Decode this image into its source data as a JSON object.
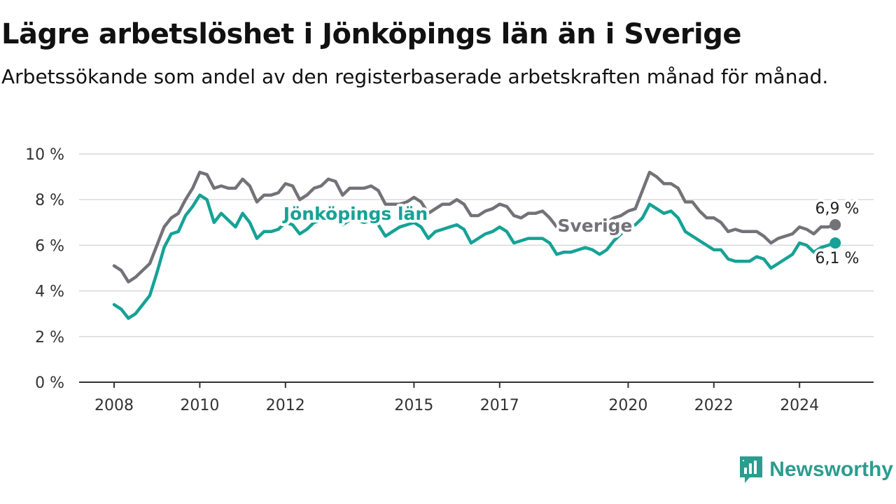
{
  "title": "Lägre arbetslöshet i Jönköpings län än i Sverige",
  "subtitle": "Arbetssökande som andel av den registerbaserade arbetskraften månad för månad.",
  "brand": {
    "name": "Newsworthy",
    "icon": "newsworthy-chart-icon"
  },
  "colors": {
    "sverige": "#737278",
    "jonkoping": "#16a296",
    "grid": "#d9d9d9",
    "axis": "#333333"
  },
  "chart_data": {
    "type": "line",
    "x_tick_labels": [
      "2008",
      "2010",
      "2012",
      "2015",
      "2017",
      "2020",
      "2022",
      "2024"
    ],
    "y_tick_labels": [
      "0 %",
      "2 %",
      "4 %",
      "6 %",
      "8 %",
      "10 %"
    ],
    "ylim": [
      0,
      10
    ],
    "grid": true,
    "legend": "inline labels",
    "series": [
      {
        "name": "Sverige",
        "color": "#737278",
        "end_label": "6,9 %",
        "points": [
          [
            "2008-01",
            5.1
          ],
          [
            "2008-03",
            4.9
          ],
          [
            "2008-05",
            4.4
          ],
          [
            "2008-07",
            4.6
          ],
          [
            "2008-09",
            4.9
          ],
          [
            "2008-11",
            5.2
          ],
          [
            "2009-01",
            6.0
          ],
          [
            "2009-03",
            6.8
          ],
          [
            "2009-05",
            7.2
          ],
          [
            "2009-07",
            7.4
          ],
          [
            "2009-09",
            8.0
          ],
          [
            "2009-11",
            8.5
          ],
          [
            "2010-01",
            9.2
          ],
          [
            "2010-03",
            9.1
          ],
          [
            "2010-05",
            8.5
          ],
          [
            "2010-07",
            8.6
          ],
          [
            "2010-09",
            8.5
          ],
          [
            "2010-11",
            8.5
          ],
          [
            "2011-01",
            8.9
          ],
          [
            "2011-03",
            8.6
          ],
          [
            "2011-05",
            7.9
          ],
          [
            "2011-07",
            8.2
          ],
          [
            "2011-09",
            8.2
          ],
          [
            "2011-11",
            8.3
          ],
          [
            "2012-01",
            8.7
          ],
          [
            "2012-03",
            8.6
          ],
          [
            "2012-05",
            8.0
          ],
          [
            "2012-07",
            8.2
          ],
          [
            "2012-09",
            8.5
          ],
          [
            "2012-11",
            8.6
          ],
          [
            "2013-01",
            8.9
          ],
          [
            "2013-03",
            8.8
          ],
          [
            "2013-05",
            8.2
          ],
          [
            "2013-07",
            8.5
          ],
          [
            "2013-09",
            8.5
          ],
          [
            "2013-11",
            8.5
          ],
          [
            "2014-01",
            8.6
          ],
          [
            "2014-03",
            8.4
          ],
          [
            "2014-05",
            7.8
          ],
          [
            "2014-07",
            7.8
          ],
          [
            "2014-09",
            7.8
          ],
          [
            "2014-11",
            7.9
          ],
          [
            "2015-01",
            8.1
          ],
          [
            "2015-03",
            7.9
          ],
          [
            "2015-05",
            7.4
          ],
          [
            "2015-07",
            7.6
          ],
          [
            "2015-09",
            7.8
          ],
          [
            "2015-11",
            7.8
          ],
          [
            "2016-01",
            8.0
          ],
          [
            "2016-03",
            7.8
          ],
          [
            "2016-05",
            7.3
          ],
          [
            "2016-07",
            7.3
          ],
          [
            "2016-09",
            7.5
          ],
          [
            "2016-11",
            7.6
          ],
          [
            "2017-01",
            7.8
          ],
          [
            "2017-03",
            7.7
          ],
          [
            "2017-05",
            7.3
          ],
          [
            "2017-07",
            7.2
          ],
          [
            "2017-09",
            7.4
          ],
          [
            "2017-11",
            7.4
          ],
          [
            "2018-01",
            7.5
          ],
          [
            "2018-03",
            7.2
          ],
          [
            "2018-05",
            6.8
          ],
          [
            "2018-07",
            6.8
          ],
          [
            "2018-09",
            6.8
          ],
          [
            "2018-11",
            6.8
          ],
          [
            "2019-01",
            7.0
          ],
          [
            "2019-03",
            6.9
          ],
          [
            "2019-05",
            6.8
          ],
          [
            "2019-07",
            7.0
          ],
          [
            "2019-09",
            7.2
          ],
          [
            "2019-11",
            7.3
          ],
          [
            "2020-01",
            7.5
          ],
          [
            "2020-03",
            7.6
          ],
          [
            "2020-05",
            8.4
          ],
          [
            "2020-07",
            9.2
          ],
          [
            "2020-09",
            9.0
          ],
          [
            "2020-11",
            8.7
          ],
          [
            "2021-01",
            8.7
          ],
          [
            "2021-03",
            8.5
          ],
          [
            "2021-05",
            7.9
          ],
          [
            "2021-07",
            7.9
          ],
          [
            "2021-09",
            7.5
          ],
          [
            "2021-11",
            7.2
          ],
          [
            "2022-01",
            7.2
          ],
          [
            "2022-03",
            7.0
          ],
          [
            "2022-05",
            6.6
          ],
          [
            "2022-07",
            6.7
          ],
          [
            "2022-09",
            6.6
          ],
          [
            "2022-11",
            6.6
          ],
          [
            "2023-01",
            6.6
          ],
          [
            "2023-03",
            6.4
          ],
          [
            "2023-05",
            6.1
          ],
          [
            "2023-07",
            6.3
          ],
          [
            "2023-09",
            6.4
          ],
          [
            "2023-11",
            6.5
          ],
          [
            "2024-01",
            6.8
          ],
          [
            "2024-03",
            6.7
          ],
          [
            "2024-05",
            6.5
          ],
          [
            "2024-07",
            6.8
          ],
          [
            "2024-09",
            6.8
          ],
          [
            "2024-11",
            6.9
          ]
        ]
      },
      {
        "name": "Jönköpings län",
        "color": "#16a296",
        "end_label": "6,1 %",
        "points": [
          [
            "2008-01",
            3.4
          ],
          [
            "2008-03",
            3.2
          ],
          [
            "2008-05",
            2.8
          ],
          [
            "2008-07",
            3.0
          ],
          [
            "2008-09",
            3.4
          ],
          [
            "2008-11",
            3.8
          ],
          [
            "2009-01",
            4.8
          ],
          [
            "2009-03",
            5.9
          ],
          [
            "2009-05",
            6.5
          ],
          [
            "2009-07",
            6.6
          ],
          [
            "2009-09",
            7.3
          ],
          [
            "2009-11",
            7.7
          ],
          [
            "2010-01",
            8.2
          ],
          [
            "2010-03",
            8.0
          ],
          [
            "2010-05",
            7.0
          ],
          [
            "2010-07",
            7.4
          ],
          [
            "2010-09",
            7.1
          ],
          [
            "2010-11",
            6.8
          ],
          [
            "2011-01",
            7.4
          ],
          [
            "2011-03",
            7.0
          ],
          [
            "2011-05",
            6.3
          ],
          [
            "2011-07",
            6.6
          ],
          [
            "2011-09",
            6.6
          ],
          [
            "2011-11",
            6.7
          ],
          [
            "2012-01",
            7.0
          ],
          [
            "2012-03",
            6.9
          ],
          [
            "2012-05",
            6.5
          ],
          [
            "2012-07",
            6.7
          ],
          [
            "2012-09",
            7.0
          ],
          [
            "2012-11",
            7.1
          ],
          [
            "2013-01",
            7.5
          ],
          [
            "2013-03",
            7.3
          ],
          [
            "2013-05",
            6.9
          ],
          [
            "2013-07",
            7.1
          ],
          [
            "2013-09",
            7.1
          ],
          [
            "2013-11",
            7.0
          ],
          [
            "2014-01",
            7.1
          ],
          [
            "2014-03",
            6.9
          ],
          [
            "2014-05",
            6.4
          ],
          [
            "2014-07",
            6.6
          ],
          [
            "2014-09",
            6.8
          ],
          [
            "2014-11",
            6.9
          ],
          [
            "2015-01",
            7.0
          ],
          [
            "2015-03",
            6.8
          ],
          [
            "2015-05",
            6.3
          ],
          [
            "2015-07",
            6.6
          ],
          [
            "2015-09",
            6.7
          ],
          [
            "2015-11",
            6.8
          ],
          [
            "2016-01",
            6.9
          ],
          [
            "2016-03",
            6.7
          ],
          [
            "2016-05",
            6.1
          ],
          [
            "2016-07",
            6.3
          ],
          [
            "2016-09",
            6.5
          ],
          [
            "2016-11",
            6.6
          ],
          [
            "2017-01",
            6.8
          ],
          [
            "2017-03",
            6.6
          ],
          [
            "2017-05",
            6.1
          ],
          [
            "2017-07",
            6.2
          ],
          [
            "2017-09",
            6.3
          ],
          [
            "2017-11",
            6.3
          ],
          [
            "2018-01",
            6.3
          ],
          [
            "2018-03",
            6.1
          ],
          [
            "2018-05",
            5.6
          ],
          [
            "2018-07",
            5.7
          ],
          [
            "2018-09",
            5.7
          ],
          [
            "2018-11",
            5.8
          ],
          [
            "2019-01",
            5.9
          ],
          [
            "2019-03",
            5.8
          ],
          [
            "2019-05",
            5.6
          ],
          [
            "2019-07",
            5.8
          ],
          [
            "2019-09",
            6.2
          ],
          [
            "2019-11",
            6.5
          ],
          [
            "2020-01",
            6.8
          ],
          [
            "2020-03",
            6.9
          ],
          [
            "2020-05",
            7.2
          ],
          [
            "2020-07",
            7.8
          ],
          [
            "2020-09",
            7.6
          ],
          [
            "2020-11",
            7.4
          ],
          [
            "2021-01",
            7.5
          ],
          [
            "2021-03",
            7.2
          ],
          [
            "2021-05",
            6.6
          ],
          [
            "2021-07",
            6.4
          ],
          [
            "2021-09",
            6.2
          ],
          [
            "2021-11",
            6.0
          ],
          [
            "2022-01",
            5.8
          ],
          [
            "2022-03",
            5.8
          ],
          [
            "2022-05",
            5.4
          ],
          [
            "2022-07",
            5.3
          ],
          [
            "2022-09",
            5.3
          ],
          [
            "2022-11",
            5.3
          ],
          [
            "2023-01",
            5.5
          ],
          [
            "2023-03",
            5.4
          ],
          [
            "2023-05",
            5.0
          ],
          [
            "2023-07",
            5.2
          ],
          [
            "2023-09",
            5.4
          ],
          [
            "2023-11",
            5.6
          ],
          [
            "2024-01",
            6.1
          ],
          [
            "2024-03",
            6.0
          ],
          [
            "2024-05",
            5.7
          ],
          [
            "2024-07",
            5.9
          ],
          [
            "2024-09",
            6.0
          ],
          [
            "2024-11",
            6.1
          ]
        ]
      }
    ]
  }
}
